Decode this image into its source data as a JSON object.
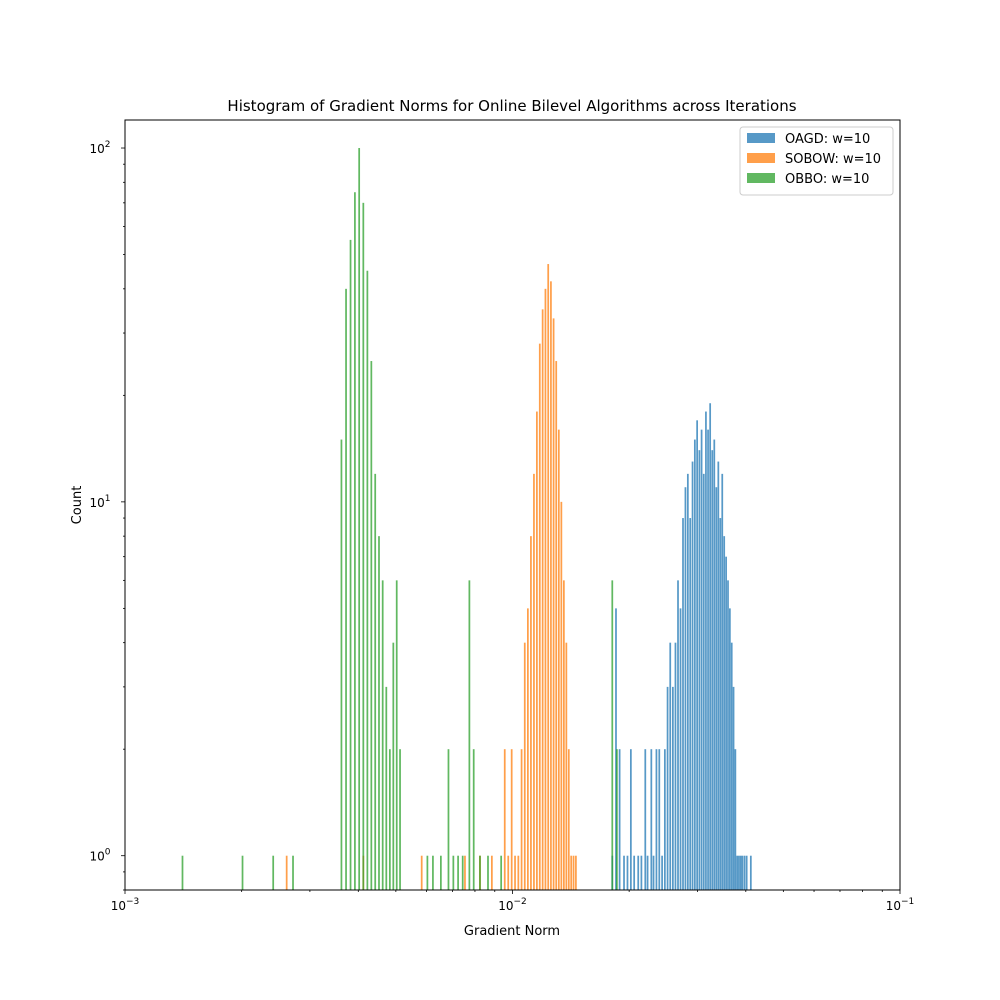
{
  "chart_data": {
    "type": "histogram",
    "title": "Histogram of Gradient Norms for Online Bilevel Algorithms across Iterations",
    "xlabel": "Gradient Norm",
    "ylabel": "Count",
    "xscale": "log",
    "yscale": "log",
    "xlim": [
      0.001,
      0.1
    ],
    "ylim": [
      0.8,
      120
    ],
    "xticks": [
      {
        "value": 0.001,
        "base": "10",
        "exp": "−3"
      },
      {
        "value": 0.01,
        "base": "10",
        "exp": "−2"
      },
      {
        "value": 0.1,
        "base": "10",
        "exp": "−1"
      }
    ],
    "yticks": [
      {
        "value": 1,
        "base": "10",
        "exp": "0"
      },
      {
        "value": 10,
        "base": "10",
        "exp": "1"
      },
      {
        "value": 100,
        "base": "10",
        "exp": "2"
      }
    ],
    "legend_position": "top-right",
    "grid": false,
    "series": [
      {
        "name": "OAGD: w=10",
        "color": "#1f77b4",
        "bins": [
          [
            0.018,
            1
          ],
          [
            0.0184,
            5
          ],
          [
            0.0188,
            2
          ],
          [
            0.0193,
            1
          ],
          [
            0.0197,
            1
          ],
          [
            0.0201,
            2
          ],
          [
            0.0205,
            1
          ],
          [
            0.021,
            1
          ],
          [
            0.0214,
            1
          ],
          [
            0.0219,
            2
          ],
          [
            0.0222,
            1
          ],
          [
            0.0227,
            2
          ],
          [
            0.023,
            1
          ],
          [
            0.0234,
            2
          ],
          [
            0.0238,
            2
          ],
          [
            0.0242,
            1
          ],
          [
            0.0246,
            2
          ],
          [
            0.025,
            3
          ],
          [
            0.0254,
            4
          ],
          [
            0.0258,
            3
          ],
          [
            0.0262,
            4
          ],
          [
            0.0266,
            6
          ],
          [
            0.027,
            5
          ],
          [
            0.0274,
            9
          ],
          [
            0.0278,
            11
          ],
          [
            0.0282,
            12
          ],
          [
            0.0286,
            9
          ],
          [
            0.029,
            13
          ],
          [
            0.0294,
            15
          ],
          [
            0.0298,
            17
          ],
          [
            0.0302,
            14
          ],
          [
            0.0306,
            16
          ],
          [
            0.031,
            12
          ],
          [
            0.0314,
            18
          ],
          [
            0.0318,
            16
          ],
          [
            0.0322,
            19
          ],
          [
            0.0326,
            14
          ],
          [
            0.033,
            15
          ],
          [
            0.0334,
            11
          ],
          [
            0.0338,
            13
          ],
          [
            0.0342,
            9
          ],
          [
            0.0346,
            12
          ],
          [
            0.035,
            8
          ],
          [
            0.0354,
            7
          ],
          [
            0.0358,
            6
          ],
          [
            0.0362,
            5
          ],
          [
            0.0366,
            4
          ],
          [
            0.037,
            3
          ],
          [
            0.0374,
            2
          ],
          [
            0.0378,
            1
          ],
          [
            0.0382,
            1
          ],
          [
            0.0386,
            1
          ],
          [
            0.039,
            1
          ],
          [
            0.0395,
            1
          ],
          [
            0.04,
            1
          ],
          [
            0.041,
            1
          ]
        ]
      },
      {
        "name": "SOBOW: w=10",
        "color": "#ff7f0e",
        "bins": [
          [
            0.0026,
            1
          ],
          [
            0.0041,
            1
          ],
          [
            0.0058,
            1
          ],
          [
            0.0075,
            1
          ],
          [
            0.0082,
            1
          ],
          [
            0.0088,
            1
          ],
          [
            0.0095,
            2
          ],
          [
            0.0097,
            1
          ],
          [
            0.0099,
            2
          ],
          [
            0.0101,
            1
          ],
          [
            0.0103,
            1
          ],
          [
            0.0105,
            2
          ],
          [
            0.0107,
            4
          ],
          [
            0.0109,
            5
          ],
          [
            0.0111,
            8
          ],
          [
            0.0113,
            12
          ],
          [
            0.0115,
            18
          ],
          [
            0.0117,
            28
          ],
          [
            0.0119,
            35
          ],
          [
            0.0121,
            40
          ],
          [
            0.0123,
            47
          ],
          [
            0.0125,
            42
          ],
          [
            0.0127,
            33
          ],
          [
            0.0129,
            25
          ],
          [
            0.0131,
            16
          ],
          [
            0.0133,
            10
          ],
          [
            0.0135,
            6
          ],
          [
            0.0137,
            4
          ],
          [
            0.0139,
            2
          ],
          [
            0.0141,
            1
          ],
          [
            0.0143,
            1
          ],
          [
            0.0145,
            1
          ]
        ]
      },
      {
        "name": "OBBO: w=10",
        "color": "#2ca02c",
        "bins": [
          [
            0.0014,
            1
          ],
          [
            0.002,
            1
          ],
          [
            0.0024,
            1
          ],
          [
            0.0027,
            1
          ],
          [
            0.0036,
            15
          ],
          [
            0.0037,
            40
          ],
          [
            0.0038,
            55
          ],
          [
            0.0039,
            75
          ],
          [
            0.004,
            100
          ],
          [
            0.0041,
            70
          ],
          [
            0.0042,
            45
          ],
          [
            0.0043,
            25
          ],
          [
            0.0044,
            12
          ],
          [
            0.0045,
            8
          ],
          [
            0.0046,
            6
          ],
          [
            0.0047,
            3
          ],
          [
            0.0048,
            2
          ],
          [
            0.0049,
            4
          ],
          [
            0.005,
            6
          ],
          [
            0.0051,
            2
          ],
          [
            0.006,
            1
          ],
          [
            0.0062,
            1
          ],
          [
            0.0065,
            1
          ],
          [
            0.0068,
            2
          ],
          [
            0.007,
            1
          ],
          [
            0.0072,
            1
          ],
          [
            0.0074,
            1
          ],
          [
            0.0077,
            6
          ],
          [
            0.0079,
            2
          ],
          [
            0.0082,
            1
          ],
          [
            0.0086,
            1
          ],
          [
            0.0093,
            1
          ],
          [
            0.018,
            6
          ],
          [
            0.0185,
            2
          ]
        ]
      }
    ]
  }
}
